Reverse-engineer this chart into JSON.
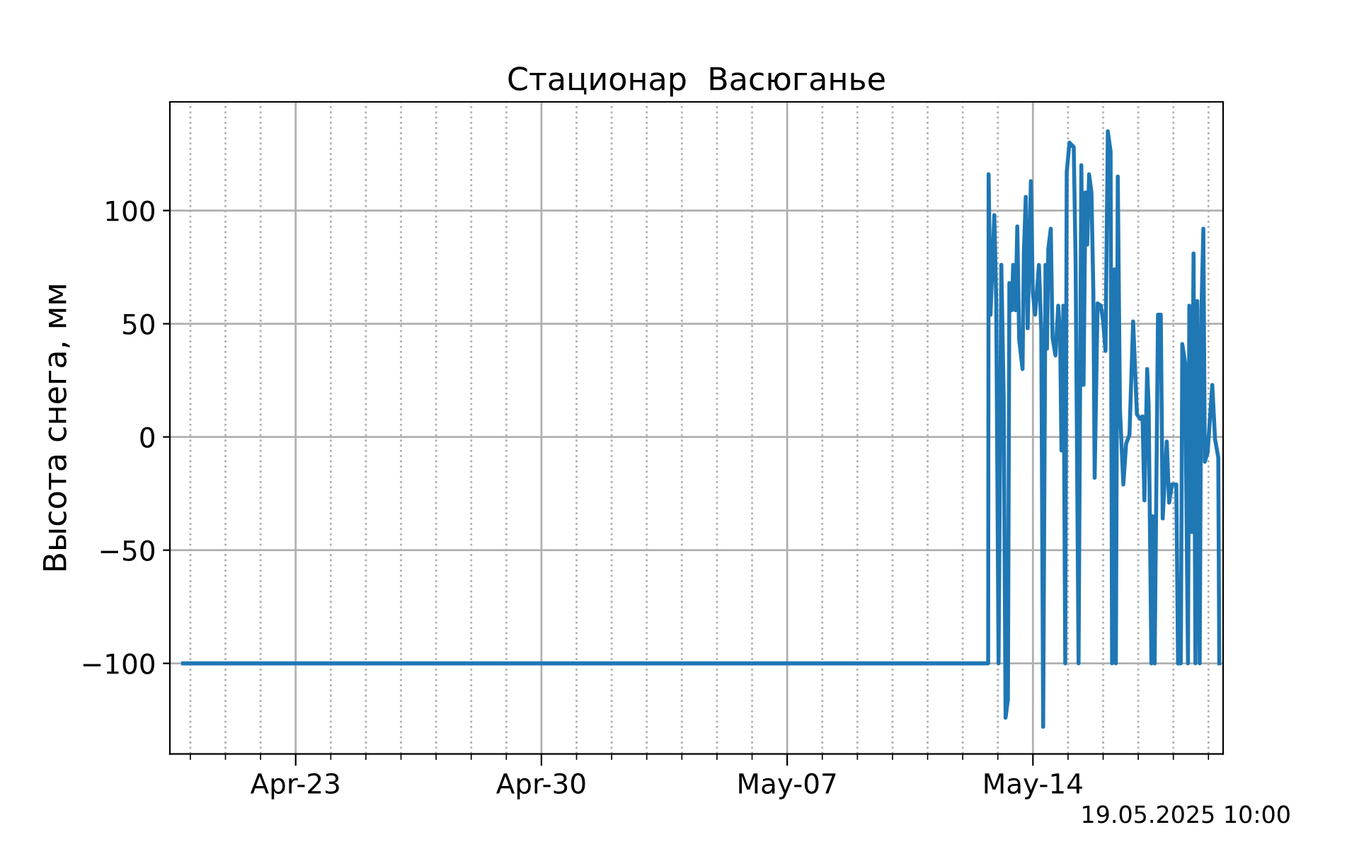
{
  "chart_data": {
    "type": "line",
    "title": "Стационар  Васюганье",
    "ylabel": "Высота снега, мм",
    "annotations": [
      "19.05.2025 10:00"
    ],
    "xlim": [
      "2025-04-19T10:00",
      "2025-05-19T10:00"
    ],
    "ylim": [
      -140,
      148
    ],
    "yticks": [
      {
        "value": -100,
        "label": "−100"
      },
      {
        "value": -50,
        "label": "−50"
      },
      0,
      50,
      100
    ],
    "xticks": [
      {
        "value": "2025-04-20",
        "label": null
      },
      {
        "value": "2025-04-21",
        "label": null
      },
      {
        "value": "2025-04-22",
        "label": null
      },
      {
        "value": "2025-04-23",
        "label": "Apr-23"
      },
      {
        "value": "2025-04-24",
        "label": null
      },
      {
        "value": "2025-04-25",
        "label": null
      },
      {
        "value": "2025-04-26",
        "label": null
      },
      {
        "value": "2025-04-27",
        "label": null
      },
      {
        "value": "2025-04-28",
        "label": null
      },
      {
        "value": "2025-04-29",
        "label": null
      },
      {
        "value": "2025-04-30",
        "label": "Apr-30"
      },
      {
        "value": "2025-05-01",
        "label": null
      },
      {
        "value": "2025-05-02",
        "label": null
      },
      {
        "value": "2025-05-03",
        "label": null
      },
      {
        "value": "2025-05-04",
        "label": null
      },
      {
        "value": "2025-05-05",
        "label": null
      },
      {
        "value": "2025-05-06",
        "label": null
      },
      {
        "value": "2025-05-07",
        "label": "May-07"
      },
      {
        "value": "2025-05-08",
        "label": null
      },
      {
        "value": "2025-05-09",
        "label": null
      },
      {
        "value": "2025-05-10",
        "label": null
      },
      {
        "value": "2025-05-11",
        "label": null
      },
      {
        "value": "2025-05-12",
        "label": null
      },
      {
        "value": "2025-05-13",
        "label": null
      },
      {
        "value": "2025-05-14",
        "label": "May-14"
      },
      {
        "value": "2025-05-15",
        "label": null
      },
      {
        "value": "2025-05-16",
        "label": null
      },
      {
        "value": "2025-05-17",
        "label": null
      },
      {
        "value": "2025-05-18",
        "label": null
      },
      {
        "value": "2025-05-19",
        "label": null
      }
    ],
    "grid": true,
    "marker": "none",
    "line_style": "solid",
    "series": [
      {
        "color": "#1f77b4",
        "x": [
          "2025-04-19T19:00",
          "2025-05-12T17:24",
          "2025-05-12T17:42",
          "2025-05-12T19:00",
          "2025-05-12T21:36",
          "2025-05-12T22:54",
          "2025-05-13T00:30",
          "2025-05-13T02:24",
          "2025-05-13T04:00",
          "2025-05-13T05:18",
          "2025-05-13T06:54",
          "2025-05-13T07:54",
          "2025-05-13T09:30",
          "2025-05-13T10:30",
          "2025-05-13T12:06",
          "2025-05-13T13:18",
          "2025-05-13T14:36",
          "2025-05-13T16:54",
          "2025-05-13T17:48",
          "2025-05-13T19:06",
          "2025-05-13T20:24",
          "2025-05-13T22:36",
          "2025-05-13T23:54",
          "2025-05-14T01:30",
          "2025-05-14T04:06",
          "2025-05-14T05:42",
          "2025-05-14T07:00",
          "2025-05-14T08:36",
          "2025-05-14T09:36",
          "2025-05-14T10:30",
          "2025-05-14T12:12",
          "2025-05-14T13:24",
          "2025-05-14T15:24",
          "2025-05-14T17:18",
          "2025-05-14T18:36",
          "2025-05-14T19:30",
          "2025-05-14T20:48",
          "2025-05-14T22:06",
          "2025-05-14T23:06",
          "2025-05-15T01:00",
          "2025-05-15T03:54",
          "2025-05-15T05:12",
          "2025-05-15T07:12",
          "2025-05-15T09:06",
          "2025-05-15T10:36",
          "2025-05-15T11:54",
          "2025-05-15T13:06",
          "2025-05-15T14:24",
          "2025-05-15T16:00",
          "2025-05-15T17:18",
          "2025-05-15T18:12",
          "2025-05-15T20:12",
          "2025-05-15T22:24",
          "2025-05-16T00:00",
          "2025-05-16T01:36",
          "2025-05-16T03:12",
          "2025-05-16T05:06",
          "2025-05-16T06:06",
          "2025-05-16T07:42",
          "2025-05-16T08:42",
          "2025-05-16T10:00",
          "2025-05-16T11:30",
          "2025-05-16T13:48",
          "2025-05-16T15:42",
          "2025-05-16T18:00",
          "2025-05-16T20:30",
          "2025-05-16T23:06",
          "2025-05-17T01:18",
          "2025-05-17T02:54",
          "2025-05-17T04:12",
          "2025-05-17T06:06",
          "2025-05-17T07:06",
          "2025-05-17T09:00",
          "2025-05-17T09:36",
          "2025-05-17T11:12",
          "2025-05-17T13:30",
          "2025-05-17T15:24",
          "2025-05-17T16:42",
          "2025-05-17T19:30",
          "2025-05-17T21:06",
          "2025-05-17T23:06",
          "2025-05-18T02:00",
          "2025-05-18T03:12",
          "2025-05-18T05:06",
          "2025-05-18T06:06",
          "2025-05-18T08:00",
          "2025-05-18T10:00",
          "2025-05-18T10:54",
          "2025-05-18T12:30",
          "2025-05-18T13:48",
          "2025-05-18T15:06",
          "2025-05-18T16:18",
          "2025-05-18T18:00",
          "2025-05-18T19:12",
          "2025-05-18T20:30",
          "2025-05-18T21:30",
          "2025-05-18T23:24",
          "2025-05-19T02:36",
          "2025-05-19T04:30",
          "2025-05-19T06:42",
          "2025-05-19T07:24"
        ],
        "values": [
          -100,
          -100,
          116,
          54,
          98,
          60,
          -100,
          76,
          18,
          -124,
          -116,
          68,
          56,
          76,
          56,
          93,
          43,
          30,
          81,
          106,
          48,
          113,
          64,
          54,
          76,
          47,
          -128,
          76,
          39,
          83,
          92,
          44,
          36,
          58,
          44,
          -6,
          58,
          -100,
          117,
          130,
          128,
          76,
          -100,
          120,
          23,
          108,
          85,
          116,
          108,
          64,
          -18,
          59,
          58,
          51,
          38,
          135,
          126,
          -100,
          74,
          -100,
          115,
          12,
          -21,
          -3,
          1,
          51,
          10,
          8,
          9,
          -28,
          30,
          14,
          -100,
          -35,
          -100,
          54,
          54,
          -36,
          -2,
          -29,
          -21,
          -21,
          -100,
          -100,
          41,
          33,
          -100,
          58,
          -42,
          81,
          -100,
          60,
          -100,
          56,
          92,
          -11,
          -7,
          23,
          -1,
          -9,
          -100
        ]
      }
    ]
  }
}
